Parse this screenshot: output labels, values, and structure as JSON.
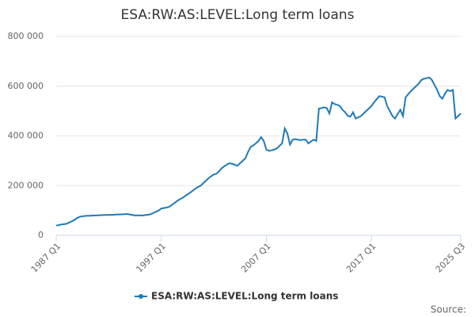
{
  "chart_data": {
    "type": "line",
    "title": "ESA:RW:AS:LEVEL:Long term loans",
    "categories": [
      "1987 Q1",
      null,
      null,
      null,
      null,
      null,
      null,
      null,
      null,
      null,
      null,
      null,
      null,
      null,
      null,
      null,
      null,
      null,
      null,
      null,
      null,
      null,
      null,
      null,
      null,
      null,
      null,
      null,
      null,
      null,
      null,
      null,
      null,
      null,
      null,
      null,
      null,
      null,
      null,
      null,
      "1997 Q1",
      null,
      null,
      null,
      null,
      null,
      null,
      null,
      null,
      null,
      null,
      null,
      null,
      null,
      null,
      null,
      null,
      null,
      null,
      null,
      null,
      null,
      null,
      null,
      null,
      null,
      null,
      null,
      null,
      null,
      null,
      null,
      null,
      null,
      null,
      null,
      null,
      null,
      null,
      null,
      "2007 Q1",
      null,
      null,
      null,
      null,
      null,
      null,
      null,
      null,
      null,
      null,
      null,
      null,
      null,
      null,
      null,
      null,
      null,
      null,
      null,
      null,
      null,
      null,
      null,
      null,
      null,
      null,
      null,
      null,
      null,
      null,
      null,
      null,
      null,
      null,
      null,
      null,
      null,
      null,
      null,
      "2017 Q1",
      null,
      null,
      null,
      null,
      null,
      null,
      null,
      null,
      null,
      null,
      null,
      null,
      null,
      null,
      null,
      null,
      null,
      null,
      null,
      null,
      null,
      null,
      null,
      null,
      null,
      null,
      null,
      null,
      null,
      null,
      null,
      null,
      null,
      "2025 Q3"
    ],
    "series": [
      {
        "name": "ESA:RW:AS:LEVEL:Long term loans",
        "color": "#1f7ab8",
        "values": [
          40000,
          41000,
          44000,
          45000,
          47000,
          52000,
          57000,
          63000,
          70000,
          75000,
          77000,
          78000,
          79000,
          79000,
          80000,
          80000,
          81000,
          81000,
          82000,
          82000,
          82000,
          83000,
          83000,
          84000,
          84000,
          85000,
          85000,
          86000,
          84000,
          82000,
          80000,
          81000,
          80000,
          80000,
          82000,
          83000,
          85000,
          90000,
          95000,
          100000,
          108000,
          110000,
          112000,
          115000,
          122000,
          130000,
          138000,
          145000,
          150000,
          158000,
          165000,
          172000,
          180000,
          188000,
          195000,
          200000,
          210000,
          220000,
          230000,
          238000,
          245000,
          248000,
          258000,
          270000,
          278000,
          285000,
          290000,
          288000,
          284000,
          280000,
          290000,
          300000,
          310000,
          335000,
          355000,
          362000,
          370000,
          380000,
          395000,
          380000,
          345000,
          340000,
          342000,
          345000,
          350000,
          360000,
          370000,
          430000,
          410000,
          365000,
          385000,
          387000,
          385000,
          383000,
          385000,
          385000,
          370000,
          378000,
          385000,
          380000,
          510000,
          512000,
          515000,
          512000,
          490000,
          535000,
          528000,
          525000,
          520000,
          505000,
          495000,
          480000,
          478000,
          495000,
          470000,
          475000,
          480000,
          490000,
          500000,
          510000,
          520000,
          535000,
          548000,
          560000,
          558000,
          555000,
          520000,
          500000,
          480000,
          470000,
          488000,
          505000,
          480000,
          555000,
          568000,
          580000,
          590000,
          600000,
          610000,
          625000,
          630000,
          632000,
          635000,
          625000,
          605000,
          585000,
          560000,
          550000,
          570000,
          585000,
          580000,
          585000,
          470000,
          480000,
          490000
        ]
      }
    ],
    "ylim": [
      0,
      800000
    ],
    "yticks": [
      0,
      {
        "value": 200000,
        "label": "200 000"
      },
      {
        "value": 400000,
        "label": "400 000"
      },
      {
        "value": 600000,
        "label": "600 000"
      },
      {
        "value": 800000,
        "label": "800 000"
      }
    ],
    "grid": true,
    "legend": "bottom",
    "source": "Source:"
  }
}
